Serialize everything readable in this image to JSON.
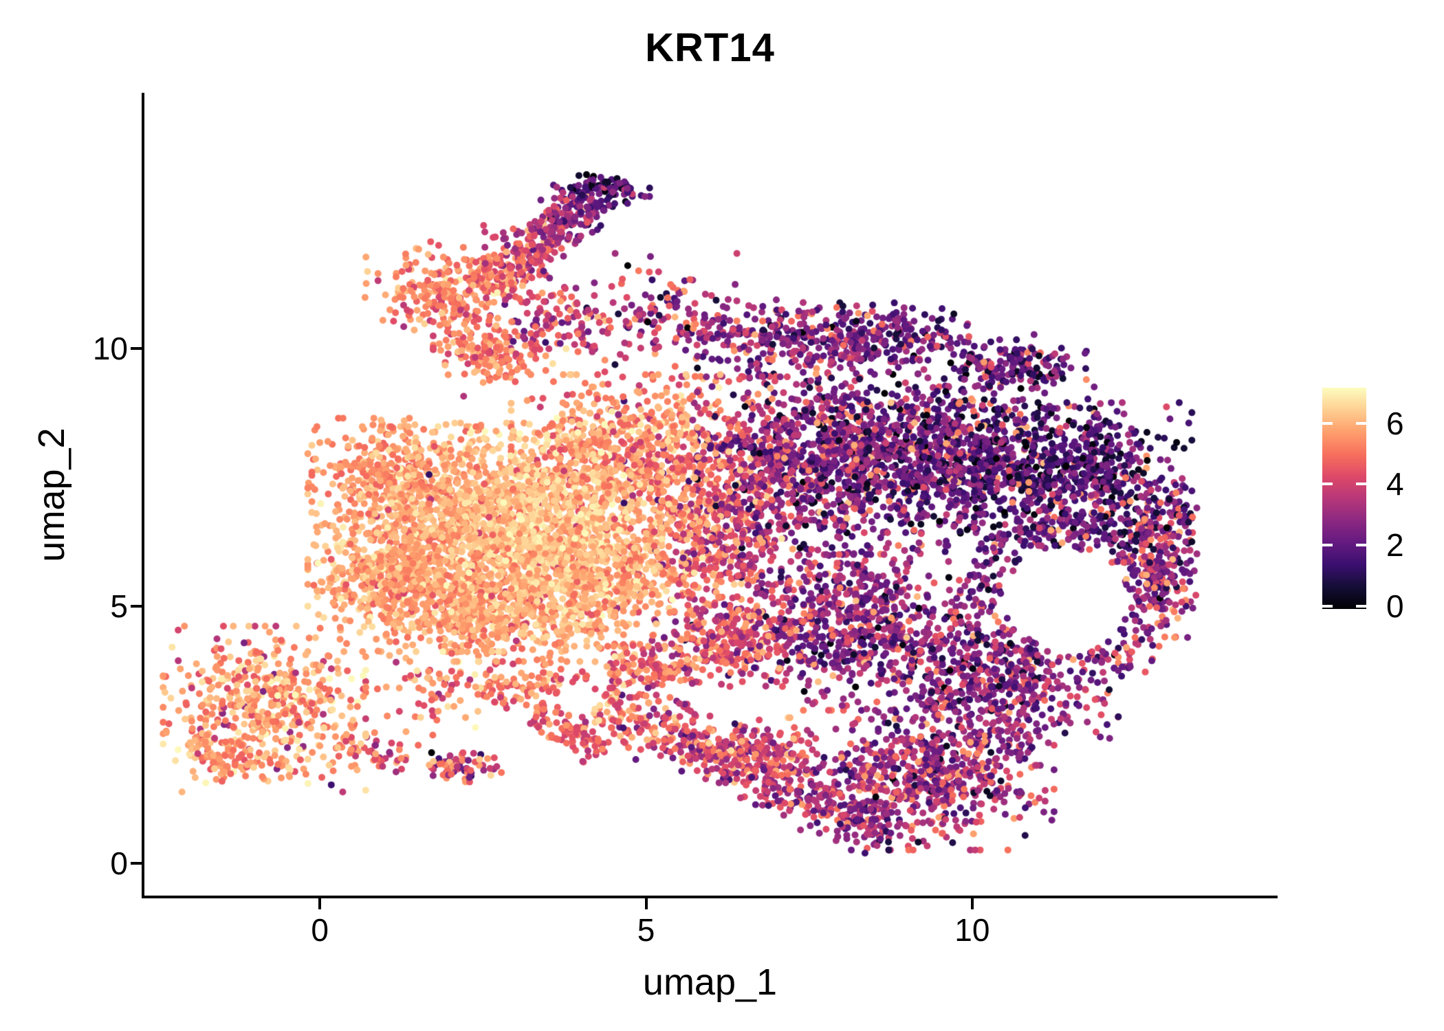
{
  "chart_data": {
    "type": "scatter",
    "title": "KRT14",
    "xlabel": "umap_1",
    "ylabel": "umap_2",
    "x_axis": {
      "ticks": [
        0,
        5,
        10
      ],
      "lim": [
        -2.69,
        14.65
      ]
    },
    "y_axis": {
      "ticks": [
        0,
        5,
        10
      ],
      "lim": [
        -0.65,
        14.97
      ]
    },
    "legend": {
      "ticks": [
        6,
        4,
        2,
        0
      ],
      "limits": [
        0,
        7.16
      ],
      "colormap": "magma",
      "position": "right"
    },
    "grid": "off",
    "point_radius_px": 5,
    "seed": 1337,
    "colormap_stops": [
      [
        0.0,
        "#000004"
      ],
      [
        0.1,
        "#140e36"
      ],
      [
        0.2,
        "#3b0f70"
      ],
      [
        0.3,
        "#641a80"
      ],
      [
        0.4,
        "#8c2981"
      ],
      [
        0.5,
        "#b73779"
      ],
      [
        0.6,
        "#de4968"
      ],
      [
        0.7,
        "#f7705c"
      ],
      [
        0.8,
        "#fe9f6d"
      ],
      [
        0.9,
        "#fecf92"
      ],
      [
        1.0,
        "#fcfdbf"
      ]
    ],
    "bounds": {
      "x_min": -2.6,
      "x_max": 13.45,
      "y_min": 0.05,
      "y_max": 14.9
    },
    "holes": [
      {
        "x": 11.45,
        "y": 5.15,
        "r": 0.95
      }
    ],
    "components": [
      {
        "name": "left-blob",
        "shape": "blob",
        "cx": -0.85,
        "cy": 3.0,
        "rx": 1.35,
        "ry": 1.4,
        "n": 520,
        "e": 5.7,
        "sd": 0.65,
        "hi": 0.04,
        "hirange": [
          6.4,
          7.0
        ],
        "lo": 0.05,
        "lorange": [
          2.5,
          4.4
        ]
      },
      {
        "name": "left-blob-tip",
        "shape": "seg",
        "x1": -1.95,
        "y1": 2.4,
        "x2": -1.25,
        "y2": 1.85,
        "w": 0.35,
        "n": 60,
        "e": 5.8,
        "e2": 5.4,
        "sd": 0.5
      },
      {
        "name": "left-bridge",
        "shape": "seg",
        "x1": 0.3,
        "y1": 2.3,
        "x2": 1.4,
        "y2": 1.9,
        "w": 0.35,
        "n": 55,
        "e": 5.2,
        "e2": 4.8,
        "sd": 0.8
      },
      {
        "name": "small-mixed-clump",
        "shape": "blob",
        "cx": 2.15,
        "cy": 1.9,
        "rx": 0.55,
        "ry": 0.3,
        "n": 65,
        "e": 4.0,
        "sd": 1.3,
        "hi": 0.08,
        "hirange": [
          5.0,
          6.0
        ],
        "lo": 0.1,
        "lorange": [
          1.2,
          2.6
        ]
      },
      {
        "name": "main-core-left",
        "shape": "blob",
        "cx": 2.0,
        "cy": 6.3,
        "rx": 1.9,
        "ry": 1.9,
        "n": 1050,
        "e": 5.9,
        "sd": 0.5,
        "lo": 0.02,
        "lorange": [
          3.6,
          4.6
        ]
      },
      {
        "name": "main-core-bright",
        "shape": "blob",
        "cx": 3.4,
        "cy": 6.6,
        "rx": 1.6,
        "ry": 1.7,
        "n": 1000,
        "e": 6.35,
        "sd": 0.4,
        "lo": 0.015,
        "lorange": [
          3.8,
          4.8
        ]
      },
      {
        "name": "main-upper-left",
        "shape": "blob",
        "cx": 1.2,
        "cy": 7.5,
        "rx": 1.15,
        "ry": 1.0,
        "n": 360,
        "e": 5.6,
        "sd": 0.5
      },
      {
        "name": "main-lower-band",
        "shape": "blob",
        "cx": 2.7,
        "cy": 4.9,
        "rx": 1.7,
        "ry": 0.85,
        "n": 520,
        "e": 5.8,
        "sd": 0.55,
        "lo": 0.02,
        "lorange": [
          3.5,
          4.5
        ]
      },
      {
        "name": "main-right-low",
        "shape": "blob",
        "cx": 4.4,
        "cy": 5.6,
        "rx": 1.25,
        "ry": 1.2,
        "n": 420,
        "e": 5.8,
        "sd": 0.6
      },
      {
        "name": "main-top-right",
        "shape": "blob",
        "cx": 4.6,
        "cy": 8.0,
        "rx": 1.45,
        "ry": 1.3,
        "n": 600,
        "e": 5.5,
        "sd": 0.7,
        "lo": 0.02,
        "lorange": [
          3.0,
          4.2
        ]
      },
      {
        "name": "main-left-lobe",
        "shape": "blob",
        "cx": 1.0,
        "cy": 5.5,
        "rx": 0.95,
        "ry": 0.8,
        "n": 280,
        "e": 5.7,
        "sd": 0.55
      },
      {
        "name": "transition-band",
        "shape": "blob",
        "cx": 6.1,
        "cy": 6.7,
        "rx": 1.25,
        "ry": 2.4,
        "n": 780,
        "e": 4.4,
        "sd": 1.0,
        "gx": -0.75,
        "hi": 0.04,
        "hirange": [
          5.8,
          6.6
        ],
        "lo": 0.04,
        "lorange": [
          1.2,
          2.4
        ]
      },
      {
        "name": "transition-lower",
        "shape": "blob",
        "cx": 6.3,
        "cy": 4.3,
        "rx": 1.05,
        "ry": 0.75,
        "n": 230,
        "e": 4.2,
        "sd": 1.0,
        "hi": 0.05,
        "hirange": [
          5.5,
          6.3
        ]
      },
      {
        "name": "right-upperleft",
        "shape": "blob",
        "cx": 7.8,
        "cy": 7.9,
        "rx": 1.75,
        "ry": 1.65,
        "n": 950,
        "e": 2.7,
        "sd": 1.05,
        "hi": 0.1,
        "hirange": [
          4.3,
          6.3
        ],
        "lo": 0.05,
        "lorange": [
          0.2,
          0.9
        ]
      },
      {
        "name": "right-uppermid",
        "shape": "blob",
        "cx": 9.8,
        "cy": 7.9,
        "rx": 1.8,
        "ry": 1.5,
        "n": 880,
        "e": 2.1,
        "sd": 0.95,
        "hi": 0.08,
        "hirange": [
          4.3,
          6.2
        ],
        "lo": 0.05,
        "lorange": [
          0.1,
          0.8
        ]
      },
      {
        "name": "right-upperright",
        "shape": "blob",
        "cx": 11.7,
        "cy": 7.4,
        "rx": 1.45,
        "ry": 1.35,
        "n": 600,
        "e": 1.9,
        "sd": 0.95,
        "hi": 0.07,
        "hirange": [
          4.2,
          6.0
        ],
        "lo": 0.06,
        "lorange": [
          0.1,
          0.8
        ]
      },
      {
        "name": "right-midleft",
        "shape": "blob",
        "cx": 8.3,
        "cy": 4.7,
        "rx": 1.6,
        "ry": 1.5,
        "n": 650,
        "e": 2.8,
        "sd": 1.05,
        "hi": 0.1,
        "hirange": [
          4.3,
          6.2
        ]
      },
      {
        "name": "right-lowermid",
        "shape": "blob",
        "cx": 10.4,
        "cy": 3.4,
        "rx": 1.6,
        "ry": 1.3,
        "n": 520,
        "e": 2.6,
        "sd": 1.05,
        "hi": 0.1,
        "hirange": [
          4.2,
          6.0
        ]
      },
      {
        "name": "hole-ring",
        "shape": "arc",
        "cx": 11.45,
        "cy": 5.15,
        "r": 1.35,
        "a0": -80,
        "a1": 250,
        "w": 0.5,
        "n": 300,
        "e": 2.5,
        "sd": 1.0,
        "hi": 0.12,
        "hirange": [
          4.3,
          6.2
        ]
      },
      {
        "name": "right-edge",
        "shape": "blob",
        "cx": 12.9,
        "cy": 6.0,
        "rx": 0.65,
        "ry": 1.4,
        "n": 220,
        "e": 2.9,
        "sd": 1.2,
        "hi": 0.16,
        "hirange": [
          4.3,
          6.2
        ]
      },
      {
        "name": "right-bottom",
        "shape": "blob",
        "cx": 9.3,
        "cy": 1.7,
        "rx": 1.7,
        "ry": 1.25,
        "n": 620,
        "e": 3.1,
        "sd": 0.95,
        "hi": 0.12,
        "hirange": [
          4.4,
          6.0
        ],
        "lo": 0.04,
        "lorange": [
          0.3,
          1.0
        ]
      },
      {
        "name": "top-wing",
        "shape": "blob",
        "cx": 1.9,
        "cy": 11.1,
        "rx": 1.05,
        "ry": 0.85,
        "n": 230,
        "e": 5.3,
        "sd": 0.6,
        "lo": 0.04,
        "lorange": [
          3.4,
          4.4
        ]
      },
      {
        "name": "top-arm",
        "shape": "seg",
        "x1": 2.6,
        "y1": 11.2,
        "x2": 4.15,
        "y2": 12.95,
        "w": 0.55,
        "n": 340,
        "e": 5.0,
        "e2": 2.3,
        "sd": 0.85,
        "hi": 0.05,
        "hirange": [
          5.6,
          6.4
        ]
      },
      {
        "name": "top-hook",
        "shape": "blob",
        "cx": 4.4,
        "cy": 13.1,
        "rx": 0.6,
        "ry": 0.3,
        "n": 85,
        "e": 1.8,
        "sd": 0.8,
        "lo": 0.06,
        "lorange": [
          0.0,
          0.3
        ]
      },
      {
        "name": "below-arm-scatter",
        "shape": "blob",
        "cx": 3.7,
        "cy": 10.4,
        "rx": 0.95,
        "ry": 0.8,
        "n": 120,
        "e": 3.9,
        "sd": 1.2
      },
      {
        "name": "neck",
        "shape": "blob",
        "cx": 2.6,
        "cy": 9.9,
        "rx": 0.75,
        "ry": 0.6,
        "n": 150,
        "e": 5.2,
        "sd": 0.65
      },
      {
        "name": "sparse-column",
        "shape": "blob",
        "cx": 5.3,
        "cy": 10.7,
        "rx": 0.95,
        "ry": 1.0,
        "n": 110,
        "e": 3.2,
        "sd": 1.3
      },
      {
        "name": "right-top-band-1",
        "shape": "blob",
        "cx": 7.0,
        "cy": 10.2,
        "rx": 1.35,
        "ry": 0.65,
        "n": 230,
        "e": 2.6,
        "sd": 1.05,
        "hi": 0.07,
        "hirange": [
          4.3,
          6.0
        ]
      },
      {
        "name": "right-top-band-2",
        "shape": "blob",
        "cx": 8.8,
        "cy": 10.2,
        "rx": 1.2,
        "ry": 0.6,
        "n": 210,
        "e": 2.3,
        "sd": 1.0,
        "hi": 0.06,
        "hirange": [
          4.3,
          6.0
        ]
      },
      {
        "name": "right-top-band-3",
        "shape": "blob",
        "cx": 10.6,
        "cy": 9.7,
        "rx": 1.0,
        "ry": 0.5,
        "n": 140,
        "e": 2.0,
        "sd": 0.9,
        "hi": 0.05,
        "hirange": [
          4.2,
          5.8
        ]
      },
      {
        "name": "bottom-arm",
        "shape": "seg",
        "x1": 4.3,
        "y1": 3.2,
        "x2": 6.4,
        "y2": 1.95,
        "w": 0.55,
        "n": 260,
        "e": 4.8,
        "e2": 4.2,
        "sd": 0.95,
        "hi": 0.05,
        "hirange": [
          6.0,
          6.8
        ],
        "lo": 0.05,
        "lorange": [
          1.5,
          3.0
        ]
      },
      {
        "name": "bottom-arm-2",
        "shape": "seg",
        "x1": 6.4,
        "y1": 1.95,
        "x2": 8.7,
        "y2": 0.6,
        "w": 0.5,
        "n": 240,
        "e": 3.9,
        "e2": 3.1,
        "sd": 0.95,
        "lo": 0.06,
        "lorange": [
          1.0,
          2.2
        ]
      },
      {
        "name": "bottom-arm-clump",
        "shape": "blob",
        "cx": 6.7,
        "cy": 2.2,
        "rx": 0.8,
        "ry": 0.55,
        "n": 150,
        "e": 4.3,
        "sd": 0.95,
        "hi": 0.06,
        "hirange": [
          5.8,
          6.5
        ]
      },
      {
        "name": "chain-left",
        "shape": "seg",
        "x1": 3.3,
        "y1": 3.0,
        "x2": 4.35,
        "y2": 2.15,
        "w": 0.3,
        "n": 90,
        "e": 4.7,
        "e2": 4.4,
        "sd": 0.8
      },
      {
        "name": "mid-scatter",
        "shape": "blob",
        "cx": 4.9,
        "cy": 3.8,
        "rx": 1.15,
        "ry": 0.5,
        "n": 130,
        "e": 4.9,
        "sd": 0.8
      },
      {
        "name": "mid-scatter-2",
        "shape": "blob",
        "cx": 3.0,
        "cy": 3.5,
        "rx": 0.8,
        "ry": 0.5,
        "n": 90,
        "e": 5.1,
        "sd": 0.8
      },
      {
        "name": "gap-sparse",
        "shape": "blob",
        "cx": 1.7,
        "cy": 3.3,
        "rx": 0.9,
        "ry": 0.7,
        "n": 60,
        "e": 5.2,
        "sd": 0.9
      },
      {
        "name": "outliers",
        "shape": "blob",
        "cx": 6.5,
        "cy": 6.0,
        "rx": 5.5,
        "ry": 4.5,
        "n": 40,
        "e": 3.5,
        "sd": 1.6
      }
    ]
  }
}
